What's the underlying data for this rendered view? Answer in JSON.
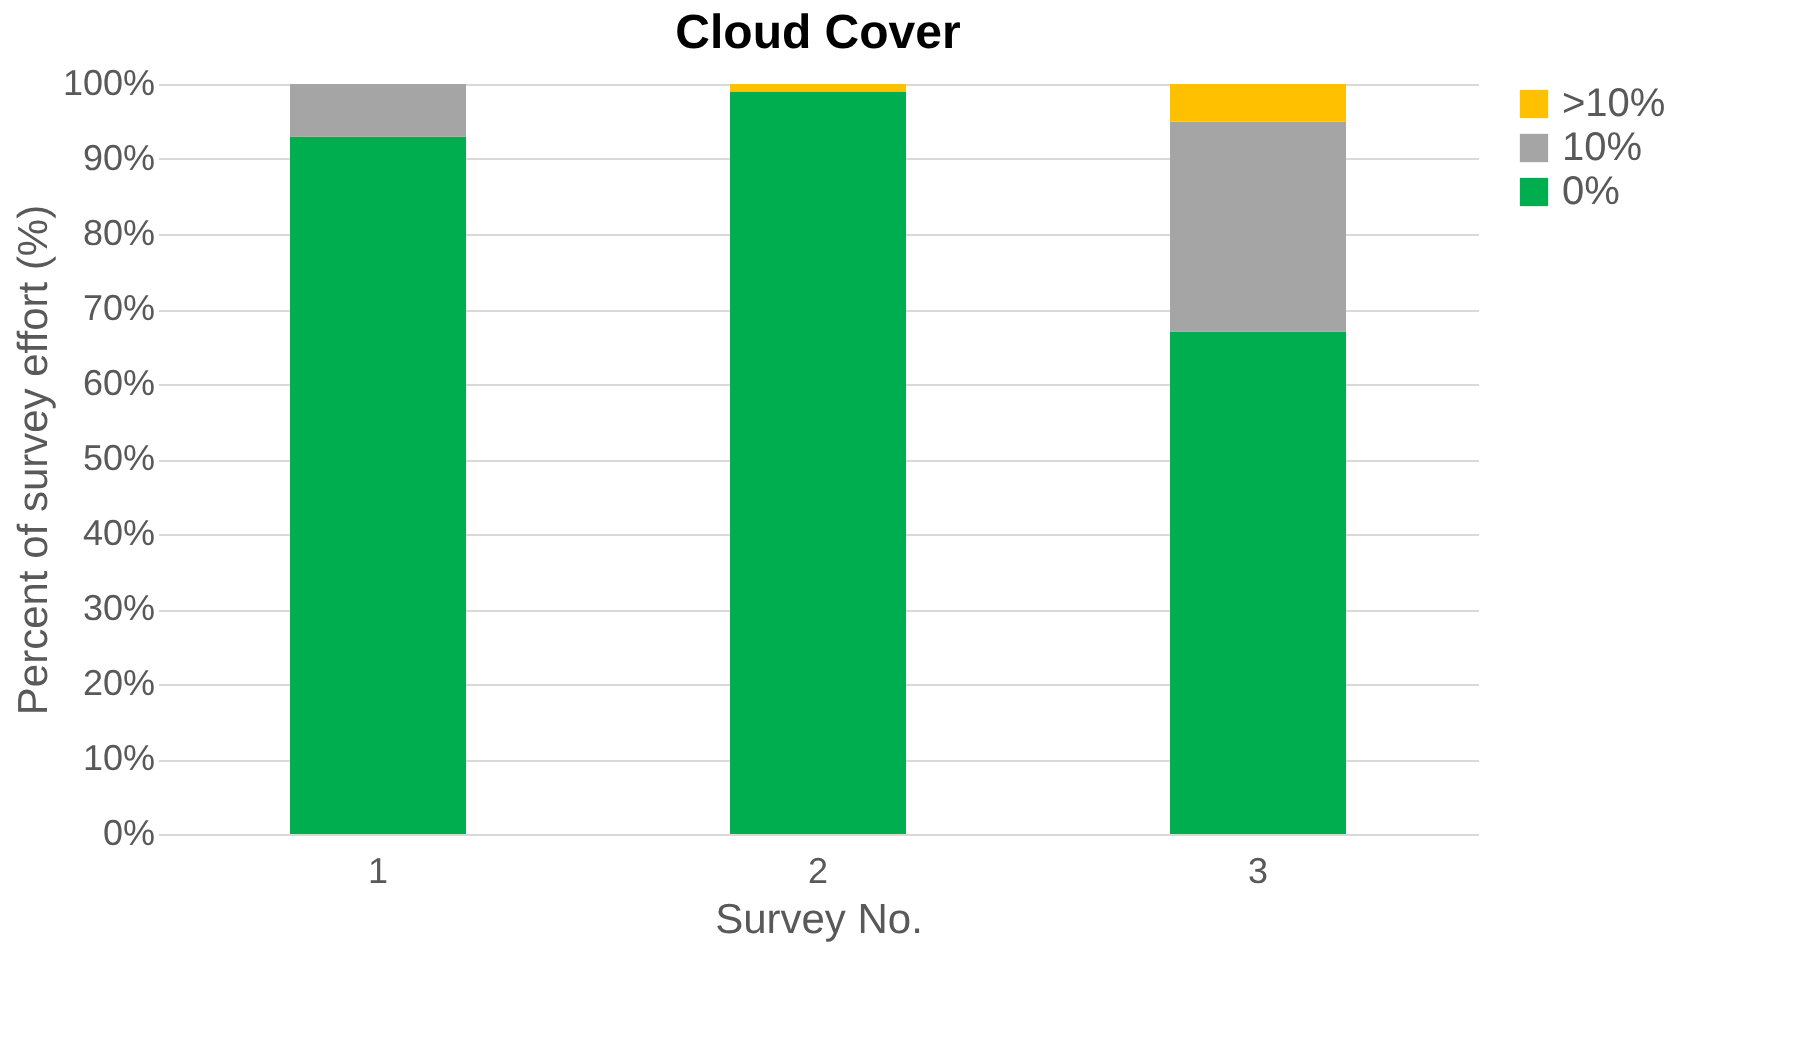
{
  "chart_data": {
    "type": "bar",
    "title": "Cloud Cover",
    "xlabel": "Survey No.",
    "ylabel": "Percent of survey effort (%)",
    "categories": [
      "1",
      "2",
      "3"
    ],
    "stacked": true,
    "series": [
      {
        "name": "0%",
        "color": "#00ad4f",
        "values": [
          93,
          99,
          67
        ]
      },
      {
        "name": "10%",
        "color": "#a5a5a5",
        "values": [
          7,
          0,
          28
        ]
      },
      {
        "name": ">10%",
        "color": "#ffc000",
        "values": [
          0,
          1,
          5
        ]
      }
    ],
    "ylim": [
      0,
      100
    ],
    "yticks": [
      {
        "value": 0,
        "label": "0%"
      },
      {
        "value": 10,
        "label": "10%"
      },
      {
        "value": 20,
        "label": "20%"
      },
      {
        "value": 30,
        "label": "30%"
      },
      {
        "value": 40,
        "label": "40%"
      },
      {
        "value": 50,
        "label": "50%"
      },
      {
        "value": 60,
        "label": "60%"
      },
      {
        "value": 70,
        "label": "70%"
      },
      {
        "value": 80,
        "label": "80%"
      },
      {
        "value": 90,
        "label": "90%"
      },
      {
        "value": 100,
        "label": "100%"
      }
    ],
    "grid": "y",
    "legend": "right"
  }
}
